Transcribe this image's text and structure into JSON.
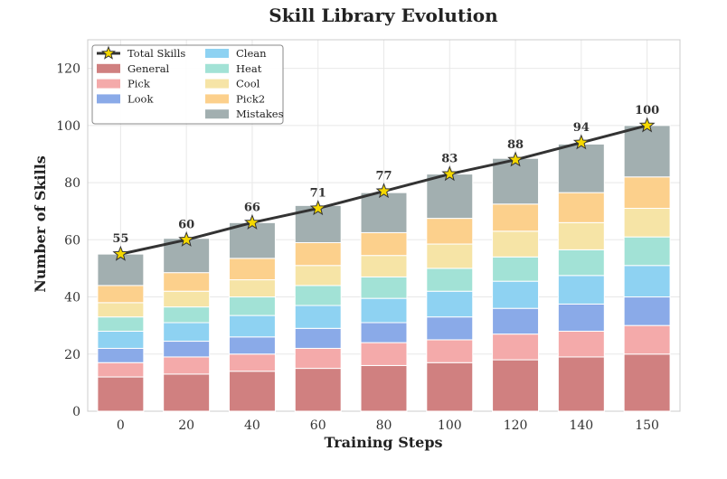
{
  "chart_data": {
    "type": "bar",
    "stacked": true,
    "title": "Skill Library Evolution",
    "xlabel": "Training Steps",
    "ylabel": "Number of Skills",
    "ylim": [
      0,
      130
    ],
    "yticks": [
      0,
      20,
      40,
      60,
      80,
      100,
      120
    ],
    "grid": true,
    "legend_position": "top-left",
    "categories": [
      "0",
      "20",
      "40",
      "60",
      "80",
      "100",
      "120",
      "140",
      "150"
    ],
    "series": [
      {
        "name": "General",
        "color": "#d08080",
        "values": [
          12,
          13,
          14,
          15,
          16,
          17,
          18,
          19,
          20
        ]
      },
      {
        "name": "Pick",
        "color": "#f4aaaa",
        "values": [
          5,
          6,
          6,
          7,
          8,
          8,
          9,
          9,
          10
        ]
      },
      {
        "name": "Look",
        "color": "#8aaae8",
        "values": [
          5,
          5.5,
          6,
          7,
          7,
          8,
          9,
          9.5,
          10
        ]
      },
      {
        "name": "Clean",
        "color": "#8ed2f2",
        "values": [
          6,
          6.5,
          7.5,
          8,
          8.5,
          9,
          9.5,
          10,
          11
        ]
      },
      {
        "name": "Heat",
        "color": "#a2e2d6",
        "values": [
          5,
          5.5,
          6.5,
          7,
          7.5,
          8,
          8.5,
          9,
          10
        ]
      },
      {
        "name": "Cool",
        "color": "#f6e4a6",
        "values": [
          5,
          5.5,
          6,
          7,
          7.5,
          8.5,
          9,
          9.5,
          10
        ]
      },
      {
        "name": "Pick2",
        "color": "#fcd08c",
        "values": [
          6,
          6.5,
          7.5,
          8,
          8,
          9,
          9.5,
          10.5,
          11
        ]
      },
      {
        "name": "Mistakes",
        "color": "#a2afb0",
        "values": [
          11,
          12,
          12.5,
          13,
          14,
          15.5,
          16,
          17,
          18
        ]
      }
    ],
    "line": {
      "name": "Total Skills",
      "color": "#333333",
      "marker_color": "#f5d800",
      "values": [
        55,
        60,
        66,
        71,
        77,
        83,
        88,
        94,
        100
      ],
      "labels": [
        "55",
        "60",
        "66",
        "71",
        "77",
        "83",
        "88",
        "94",
        "100"
      ]
    }
  }
}
